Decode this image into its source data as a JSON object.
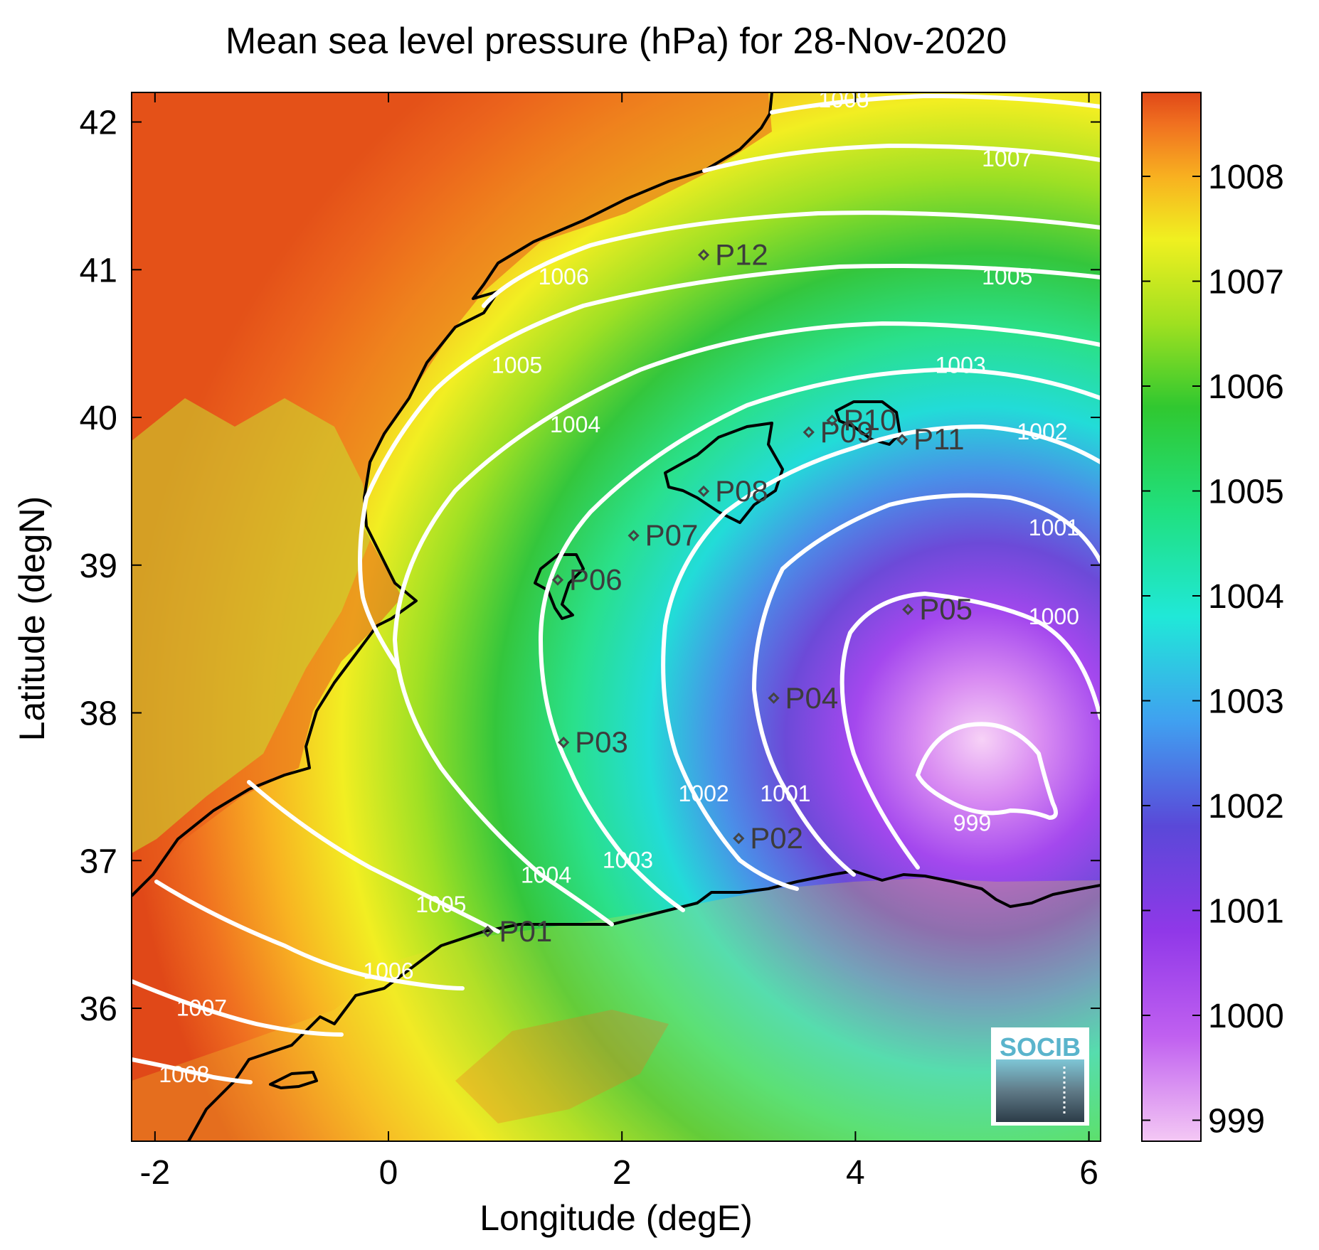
{
  "title": "Mean sea level pressure (hPa) for 28-Nov-2020",
  "xlabel": "Longitude (degE)",
  "ylabel": "Latitude (degN)",
  "x_ticks": [
    {
      "value": -2,
      "label": "-2"
    },
    {
      "value": 0,
      "label": "0"
    },
    {
      "value": 2,
      "label": "2"
    },
    {
      "value": 4,
      "label": "4"
    },
    {
      "value": 6,
      "label": "6"
    }
  ],
  "y_ticks": [
    {
      "value": 36,
      "label": "36"
    },
    {
      "value": 37,
      "label": "37"
    },
    {
      "value": 38,
      "label": "38"
    },
    {
      "value": 39,
      "label": "39"
    },
    {
      "value": 40,
      "label": "40"
    },
    {
      "value": 41,
      "label": "41"
    },
    {
      "value": 42,
      "label": "42"
    }
  ],
  "colorbar": {
    "min": 998.8,
    "max": 1008.8,
    "ticks": [
      {
        "value": 999,
        "label": "999"
      },
      {
        "value": 1000,
        "label": "1000"
      },
      {
        "value": 1001,
        "label": "1001"
      },
      {
        "value": 1002,
        "label": "1002"
      },
      {
        "value": 1003,
        "label": "1003"
      },
      {
        "value": 1004,
        "label": "1004"
      },
      {
        "value": 1005,
        "label": "1005"
      },
      {
        "value": 1006,
        "label": "1006"
      },
      {
        "value": 1007,
        "label": "1007"
      },
      {
        "value": 1008,
        "label": "1008"
      }
    ],
    "colors": [
      "#f4c8f4",
      "#b040f0",
      "#6040d8",
      "#40a0f0",
      "#20e8d8",
      "#20e080",
      "#30c830",
      "#a0e020",
      "#f0f020",
      "#f8b020",
      "#f07020",
      "#e04818"
    ]
  },
  "chart_data": {
    "type": "heatmap",
    "title": "Mean sea level pressure (hPa) for 28-Nov-2020",
    "xlabel": "Longitude (degE)",
    "ylabel": "Latitude (degN)",
    "xlim": [
      -2.2,
      6.1
    ],
    "ylim": [
      35.1,
      42.2
    ],
    "variable": "Mean sea level pressure",
    "units": "hPa",
    "date": "28-Nov-2020",
    "low_center": {
      "lon": 5.0,
      "lat": 37.6,
      "value": 998.9
    },
    "contour_levels": [
      999,
      1000,
      1001,
      1002,
      1003,
      1004,
      1005,
      1006,
      1007,
      1008
    ],
    "contour_labels": [
      {
        "text": "1008",
        "lon": 3.9,
        "lat": 42.1
      },
      {
        "text": "1007",
        "lon": 5.3,
        "lat": 41.7
      },
      {
        "text": "1006",
        "lon": 1.5,
        "lat": 40.9
      },
      {
        "text": "1005",
        "lon": 5.3,
        "lat": 40.9
      },
      {
        "text": "1005",
        "lon": 1.1,
        "lat": 40.3
      },
      {
        "text": "1003",
        "lon": 4.9,
        "lat": 40.3
      },
      {
        "text": "1004",
        "lon": 1.6,
        "lat": 39.9
      },
      {
        "text": "1002",
        "lon": 5.6,
        "lat": 39.85
      },
      {
        "text": "1001",
        "lon": 5.7,
        "lat": 39.2
      },
      {
        "text": "1000",
        "lon": 5.7,
        "lat": 38.6
      },
      {
        "text": "999",
        "lon": 5.0,
        "lat": 37.2
      },
      {
        "text": "1002",
        "lon": 2.7,
        "lat": 37.4
      },
      {
        "text": "1001",
        "lon": 3.4,
        "lat": 37.4
      },
      {
        "text": "1003",
        "lon": 2.05,
        "lat": 36.95
      },
      {
        "text": "1004",
        "lon": 1.35,
        "lat": 36.85
      },
      {
        "text": "1005",
        "lon": 0.45,
        "lat": 36.65
      },
      {
        "text": "1006",
        "lon": 0.0,
        "lat": 36.2
      },
      {
        "text": "1007",
        "lon": -1.6,
        "lat": 35.95
      },
      {
        "text": "1008",
        "lon": -1.75,
        "lat": 35.5
      }
    ]
  },
  "stations": [
    {
      "id": "P01",
      "lon": 0.85,
      "lat": 36.52
    },
    {
      "id": "P02",
      "lon": 3.0,
      "lat": 37.15
    },
    {
      "id": "P03",
      "lon": 1.5,
      "lat": 37.8
    },
    {
      "id": "P04",
      "lon": 3.3,
      "lat": 38.1
    },
    {
      "id": "P05",
      "lon": 4.45,
      "lat": 38.7
    },
    {
      "id": "P06",
      "lon": 1.45,
      "lat": 38.9
    },
    {
      "id": "P07",
      "lon": 2.1,
      "lat": 39.2
    },
    {
      "id": "P08",
      "lon": 2.7,
      "lat": 39.5
    },
    {
      "id": "P09",
      "lon": 3.6,
      "lat": 39.9
    },
    {
      "id": "P10",
      "lon": 3.8,
      "lat": 39.98
    },
    {
      "id": "P11",
      "lon": 4.4,
      "lat": 39.85
    },
    {
      "id": "P12",
      "lon": 2.7,
      "lat": 41.1
    }
  ],
  "logo": {
    "text": "SOCIB"
  }
}
